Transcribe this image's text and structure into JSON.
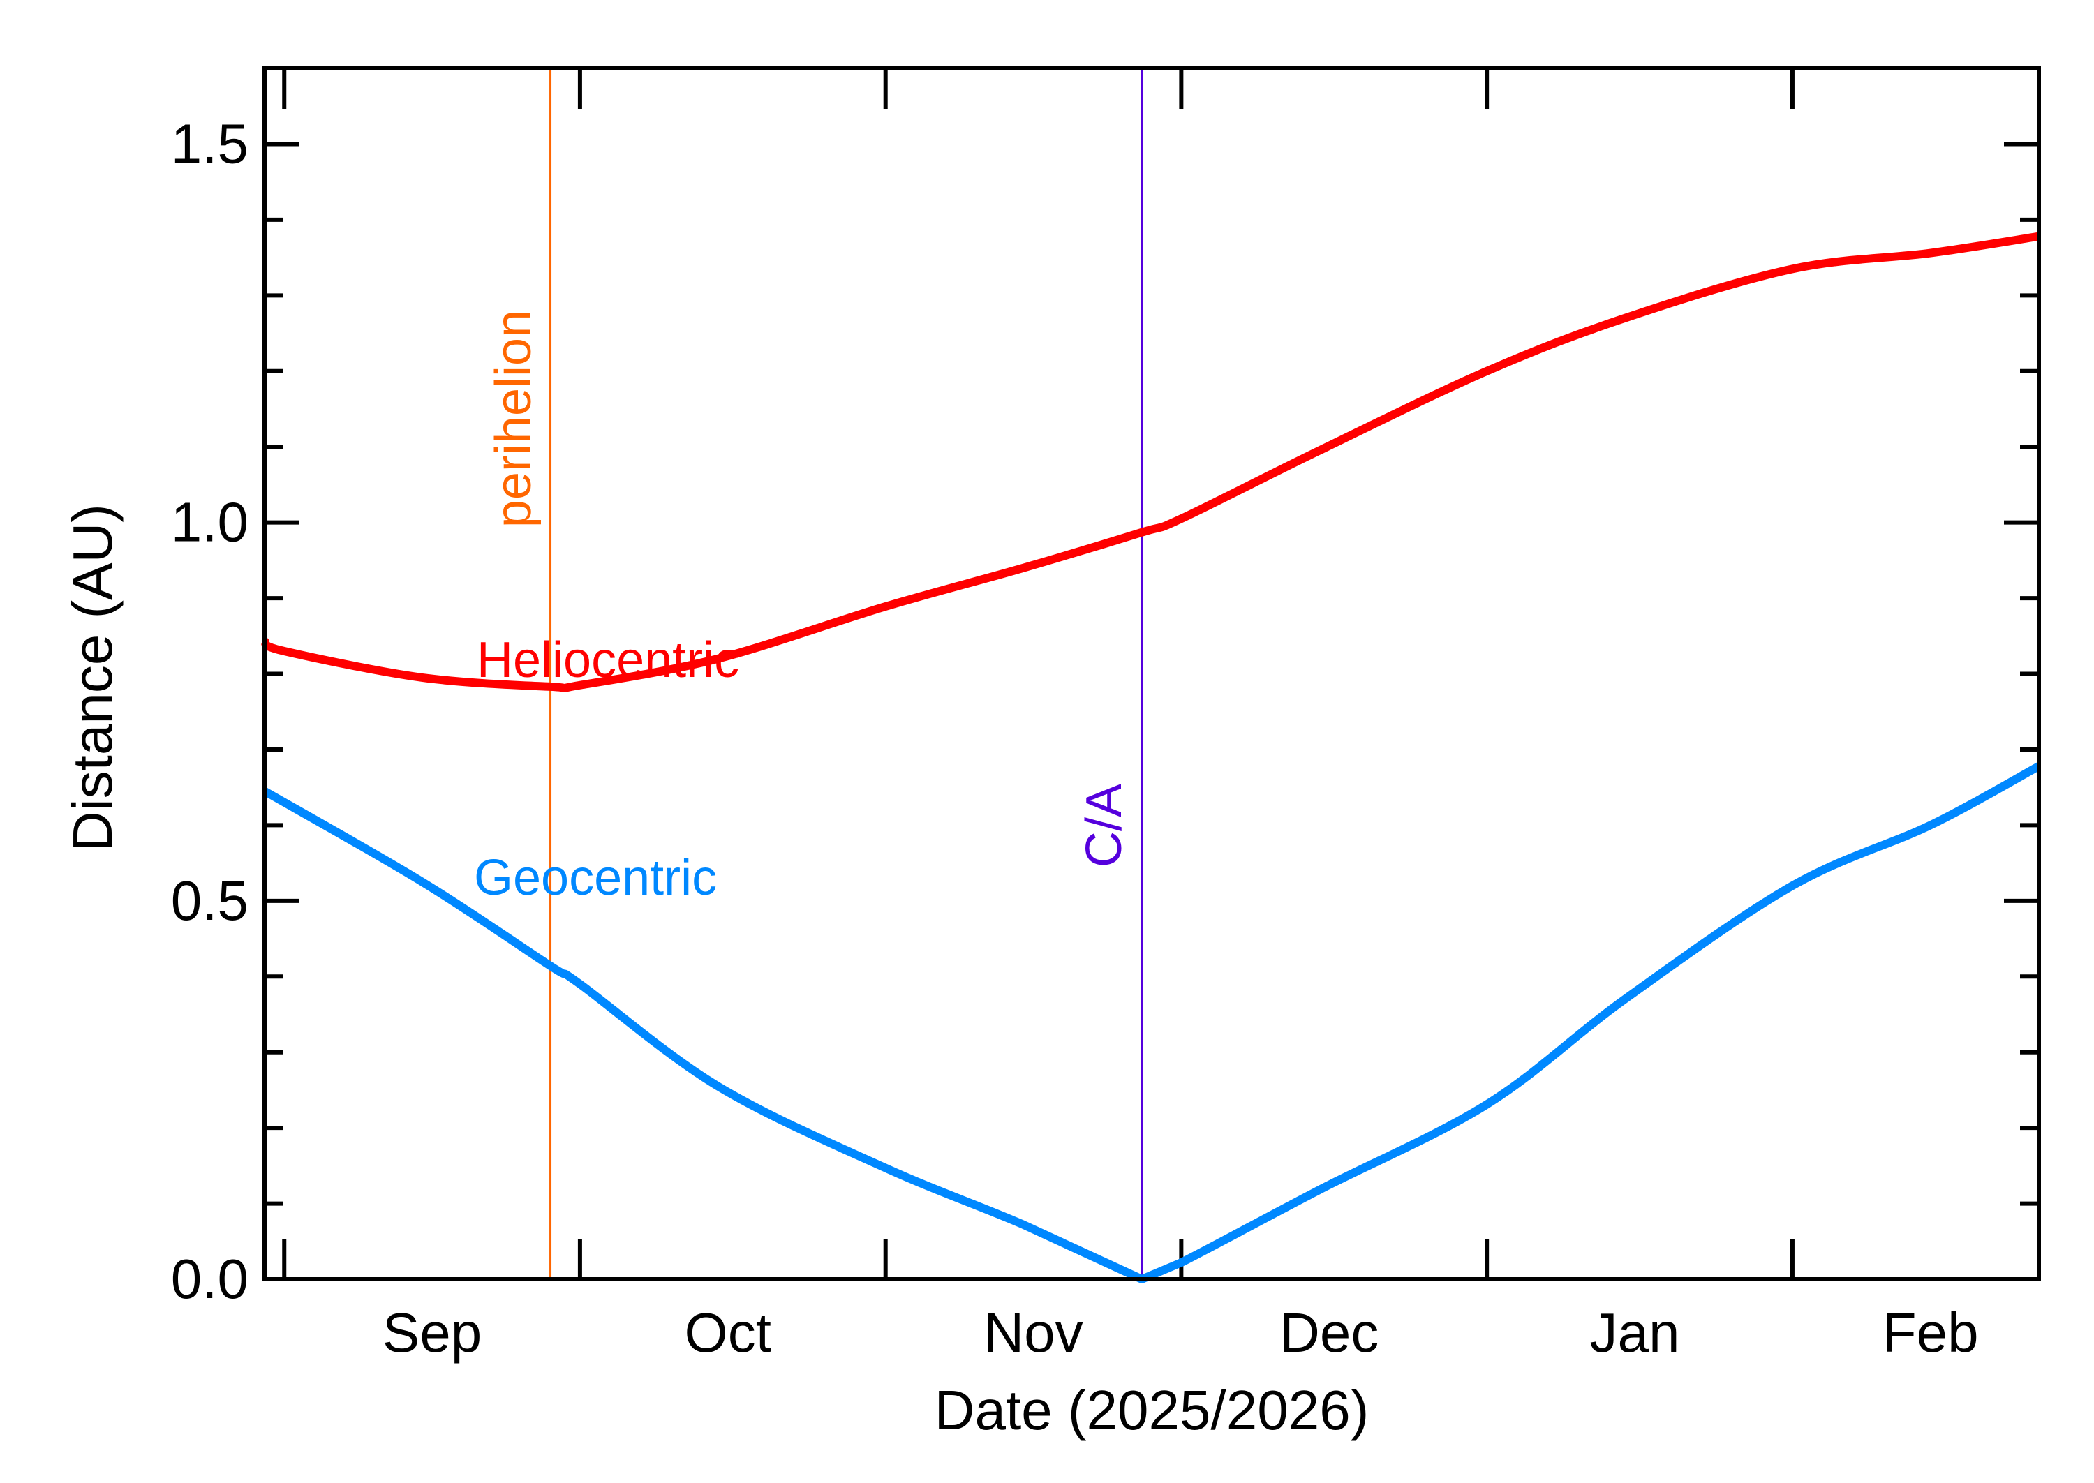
{
  "chart_data": {
    "type": "line",
    "title": "",
    "xlabel": "Date (2025/2026)",
    "ylabel": "Distance (AU)",
    "xlim": [
      "2025-08-30",
      "2026-02-26"
    ],
    "ylim": [
      0,
      1.6
    ],
    "grid": false,
    "y_ticks": [
      {
        "value": 0.0,
        "label": "0.0"
      },
      {
        "value": 0.5,
        "label": "0.5"
      },
      {
        "value": 1.0,
        "label": "1.0"
      },
      {
        "value": 1.5,
        "label": "1.5"
      }
    ],
    "y_minor_step": 0.1,
    "x_major_ticks": [
      "2025-09-01",
      "2025-10-01",
      "2025-11-01",
      "2025-12-01",
      "2026-01-01",
      "2026-02-01"
    ],
    "x_tick_labels": [
      {
        "date": "2025-09-16",
        "label": "Sep"
      },
      {
        "date": "2025-10-16",
        "label": "Oct"
      },
      {
        "date": "2025-11-16",
        "label": "Nov"
      },
      {
        "date": "2025-12-16",
        "label": "Dec"
      },
      {
        "date": "2026-01-16",
        "label": "Jan"
      },
      {
        "date": "2026-02-15",
        "label": "Feb"
      }
    ],
    "series": [
      {
        "name": "Heliocentric",
        "color": "#ff0000",
        "x": [
          "2025-08-30",
          "2025-09-01",
          "2025-09-15",
          "2025-09-28",
          "2025-10-01",
          "2025-10-15",
          "2025-11-01",
          "2025-11-15",
          "2025-11-27",
          "2025-12-01",
          "2025-12-15",
          "2026-01-01",
          "2026-01-15",
          "2026-02-01",
          "2026-02-15",
          "2026-02-26"
        ],
        "y": [
          0.843,
          0.83,
          0.795,
          0.783,
          0.785,
          0.82,
          0.889,
          0.94,
          0.987,
          1.005,
          1.095,
          1.2,
          1.27,
          1.335,
          1.356,
          1.378
        ]
      },
      {
        "name": "Geocentric",
        "color": "#0088ff",
        "x": [
          "2025-08-30",
          "2025-09-15",
          "2025-09-28",
          "2025-10-01",
          "2025-10-15",
          "2025-11-01",
          "2025-11-15",
          "2025-11-27",
          "2025-12-01",
          "2025-12-15",
          "2026-01-01",
          "2026-01-15",
          "2026-02-01",
          "2026-02-15",
          "2026-02-26"
        ],
        "y": [
          0.645,
          0.525,
          0.414,
          0.39,
          0.255,
          0.147,
          0.072,
          0.0,
          0.022,
          0.118,
          0.231,
          0.37,
          0.52,
          0.6,
          0.678
        ]
      }
    ],
    "annotations": [
      {
        "label": "perihelion",
        "date": "2025-09-28",
        "color": "#ff6600"
      },
      {
        "label": "C/A",
        "date": "2025-11-27",
        "color": "#5500dd"
      }
    ]
  }
}
